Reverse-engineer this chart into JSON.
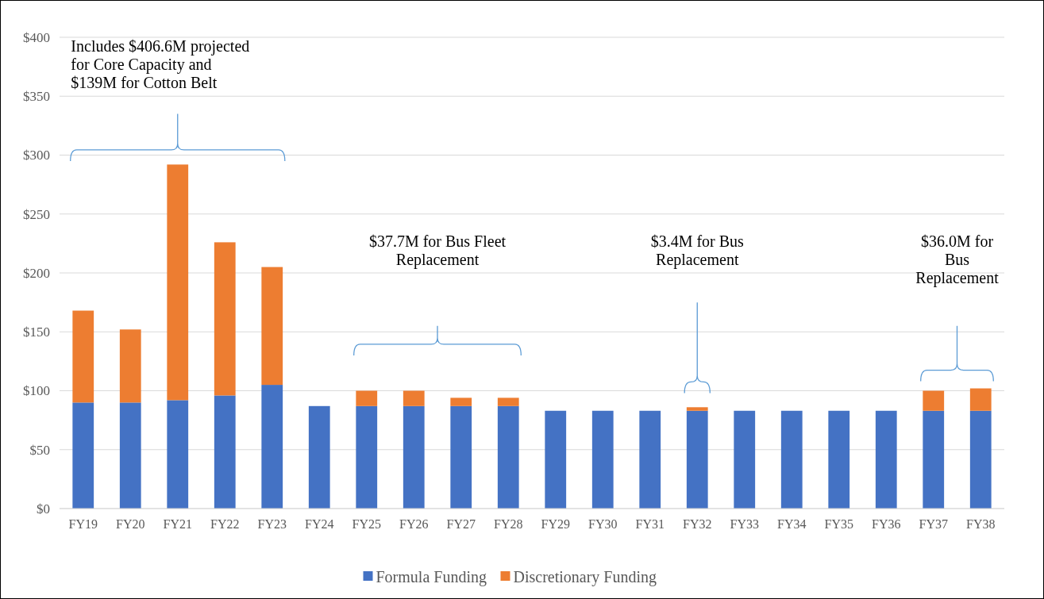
{
  "chart_data": {
    "type": "bar",
    "stacked": true,
    "categories": [
      "FY19",
      "FY20",
      "FY21",
      "FY22",
      "FY23",
      "FY24",
      "FY25",
      "FY26",
      "FY27",
      "FY28",
      "FY29",
      "FY30",
      "FY31",
      "FY32",
      "FY33",
      "FY34",
      "FY35",
      "FY36",
      "FY37",
      "FY38"
    ],
    "series": [
      {
        "name": "Formula Funding",
        "color": "#4472c4",
        "values": [
          90,
          90,
          92,
          96,
          105,
          87,
          87,
          87,
          87,
          87,
          83,
          83,
          83,
          83,
          83,
          83,
          83,
          83,
          83,
          83
        ]
      },
      {
        "name": "Discretionary Funding",
        "color": "#ed7d31",
        "values": [
          78,
          62,
          200,
          130,
          100,
          0,
          13,
          13,
          7,
          7,
          0,
          0,
          0,
          3,
          0,
          0,
          0,
          0,
          17,
          19
        ]
      }
    ],
    "ylim": [
      0,
      400
    ],
    "yticks": [
      {
        "value": 0,
        "label": "$0"
      },
      {
        "value": 50,
        "label": "$50"
      },
      {
        "value": 100,
        "label": "$100"
      },
      {
        "value": 150,
        "label": "$150"
      },
      {
        "value": 200,
        "label": "$200"
      },
      {
        "value": 250,
        "label": "$250"
      },
      {
        "value": 300,
        "label": "$300"
      },
      {
        "value": 350,
        "label": "$350"
      },
      {
        "value": 400,
        "label": "$400"
      }
    ],
    "grid": "y",
    "legend": "bottom",
    "annotations": [
      "Includes $406.6M projected\nfor Core Capacity and\n$139M for Cotton Belt",
      "$37.7M for Bus Fleet\nReplacement",
      "$3.4M for Bus\nReplacement",
      "$36.0M for\nBus\nReplacement"
    ]
  }
}
